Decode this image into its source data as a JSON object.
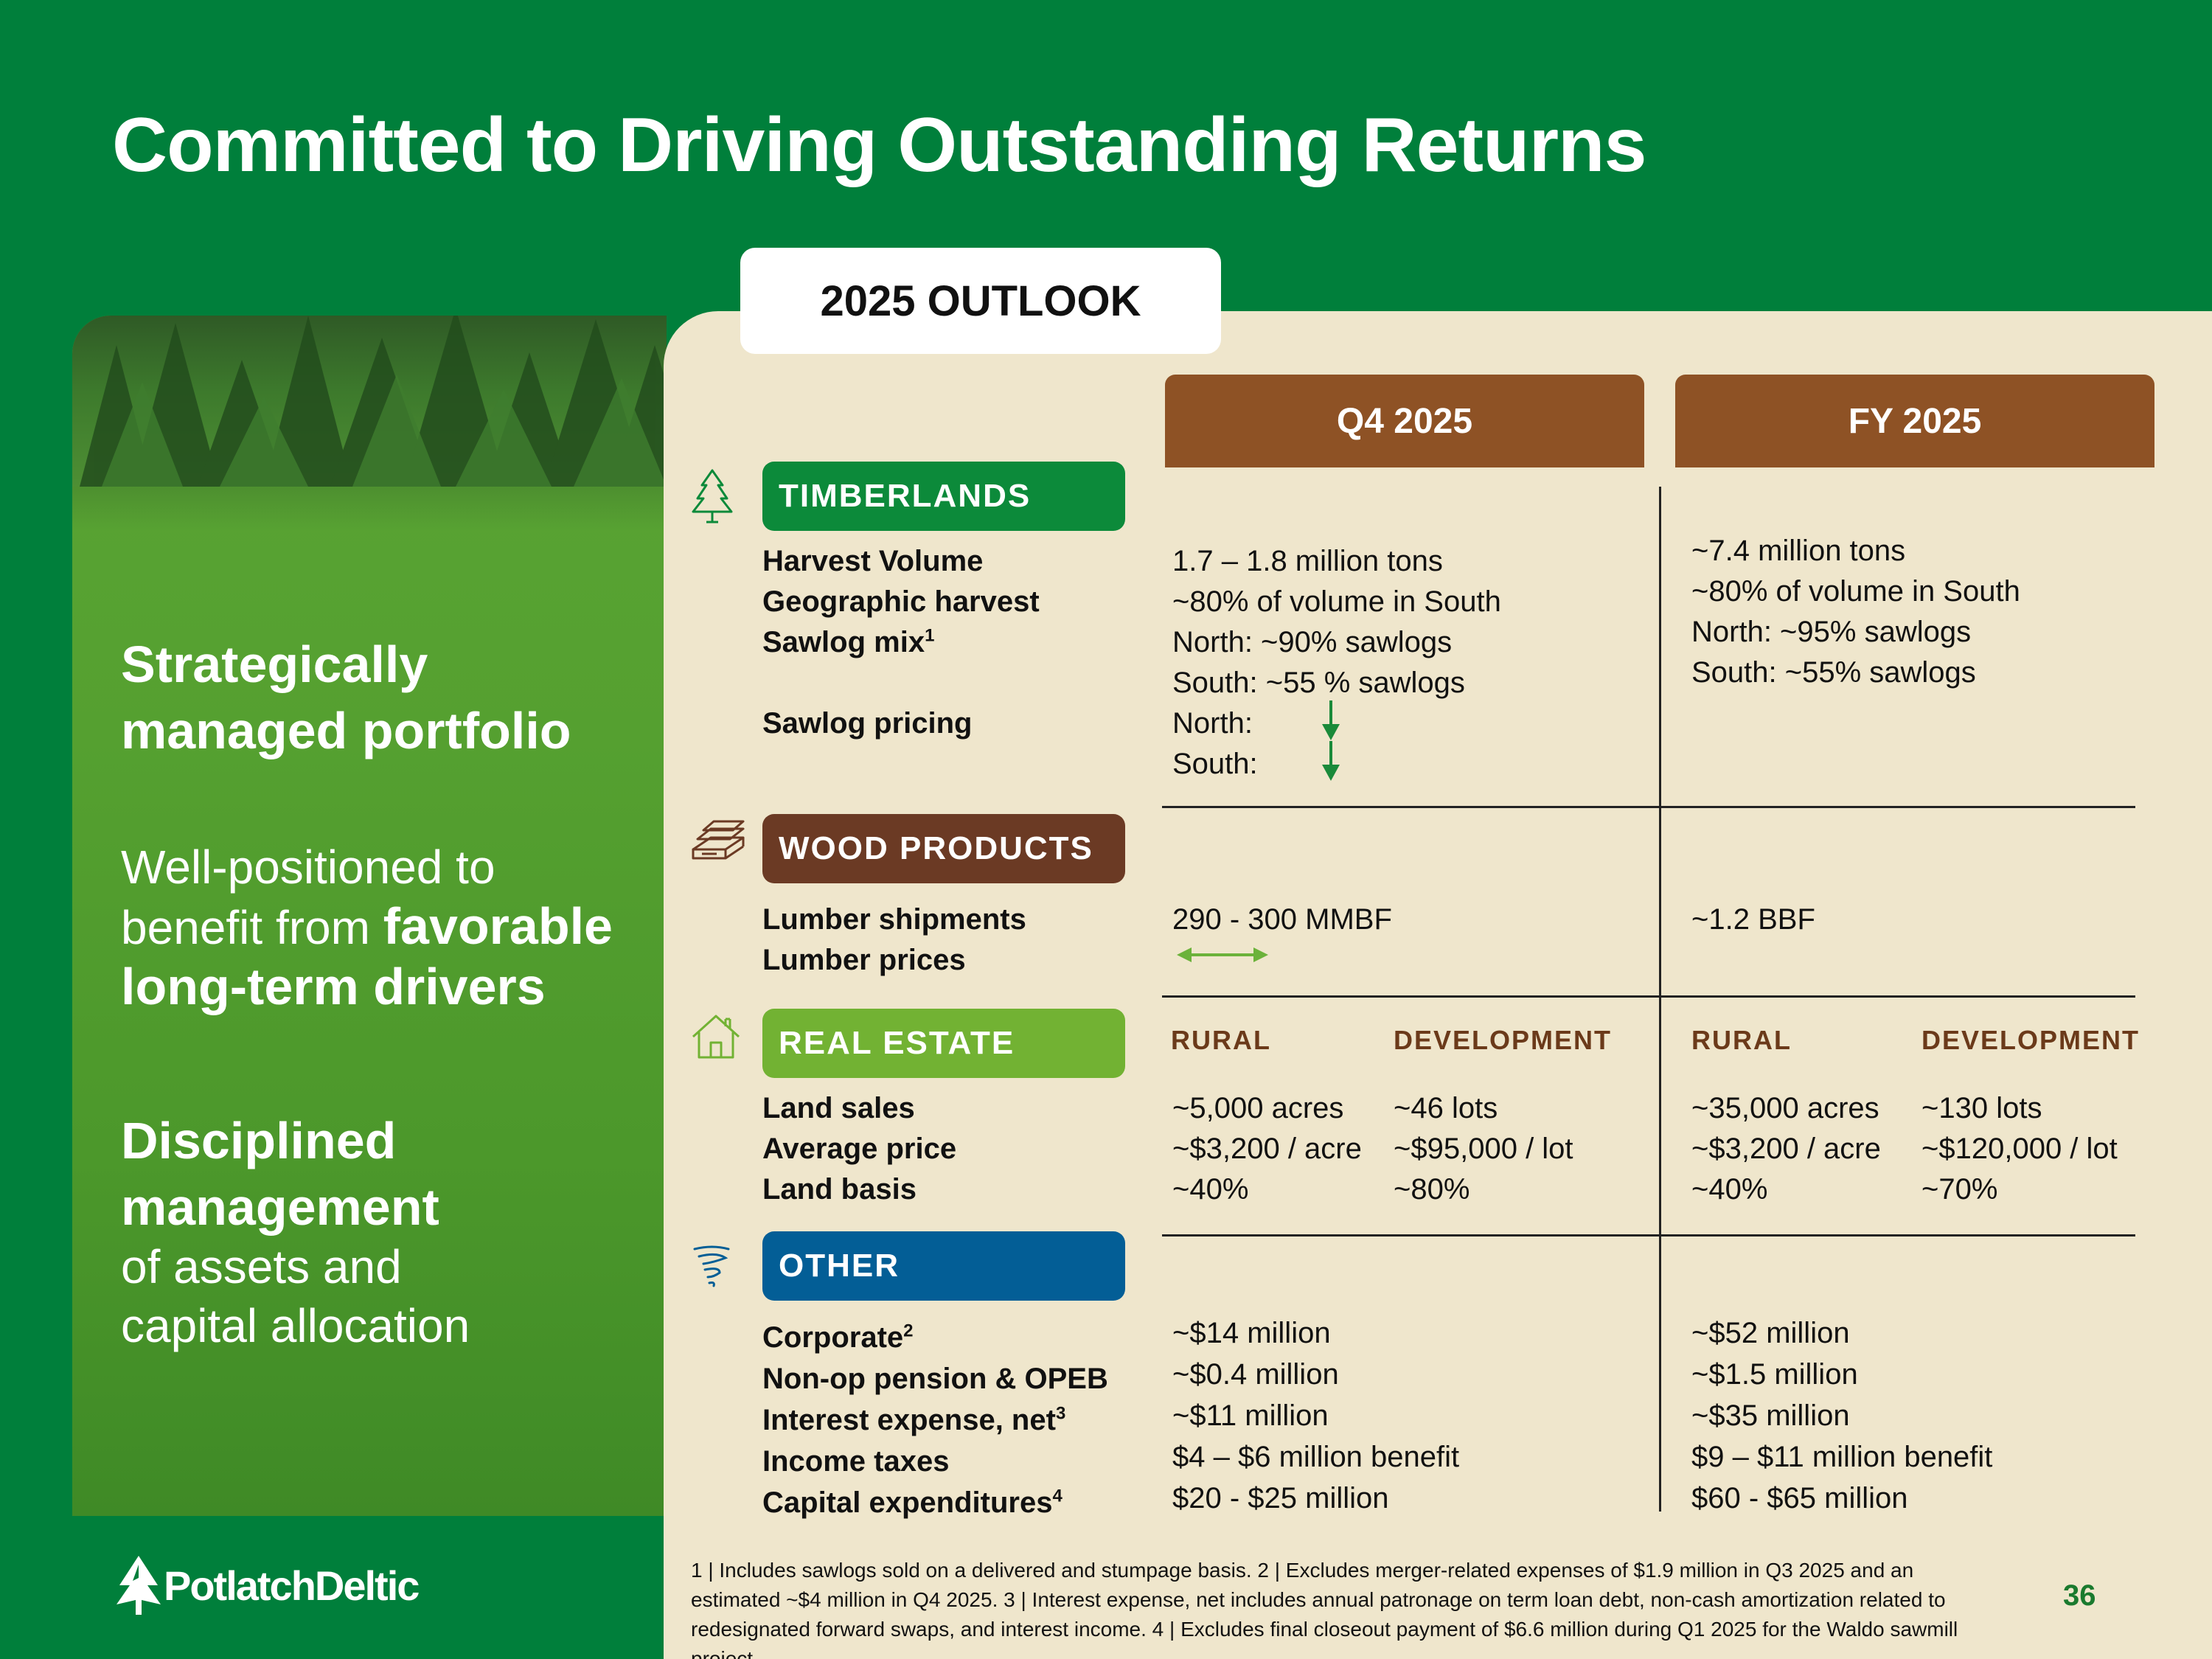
{
  "title": "Committed to Driving Outstanding Returns",
  "left_panel": {
    "heading1_line1": "Strategically",
    "heading1_line2": "managed portfolio",
    "para_line1": "Well-positioned to",
    "para_line2_regular": "benefit from ",
    "para_line2_bold": "favorable",
    "para_line3_bold": "long-term drivers",
    "heading2_line1": "Disciplined",
    "heading2_line2": "management",
    "para2_line1": "of assets and",
    "para2_line2": "capital allocation"
  },
  "logo": {
    "text": "PotlatchDeltic",
    "icon": "tree-logo-icon"
  },
  "outlook_tab": "2025 OUTLOOK",
  "columns": {
    "q4": "Q4 2025",
    "fy": "FY 2025"
  },
  "colors": {
    "background_green": "#007f3b",
    "panel_cream": "#efe6cc",
    "header_brown": "#8e5225",
    "timberlands": "#0c8a3a",
    "wood_products": "#6b3a24",
    "real_estate": "#72b233",
    "other": "#035e96",
    "arrow_green": "#1a8a3a"
  },
  "timberlands": {
    "badge": "TIMBERLANDS",
    "icon": "tree-icon",
    "labels": {
      "harvest_volume": "Harvest Volume",
      "geographic_harvest": "Geographic harvest",
      "sawlog_mix": "Sawlog mix",
      "sawlog_mix_sup": "1",
      "sawlog_pricing": "Sawlog pricing"
    },
    "q4": {
      "harvest_volume": "1.7 – 1.8 million tons",
      "geographic_harvest": "~80% of volume in South",
      "sawlog_north": "North: ~90% sawlogs",
      "sawlog_south": "South: ~55 % sawlogs",
      "pricing_north": "North:",
      "pricing_south": "South:",
      "pricing_north_trend": "down-arrow-icon",
      "pricing_south_trend": "down-arrow-icon"
    },
    "fy": {
      "harvest_volume": "~7.4 million tons",
      "geographic_harvest": "~80% of volume in South",
      "sawlog_north": "North: ~95% sawlogs",
      "sawlog_south": "South: ~55% sawlogs"
    }
  },
  "wood_products": {
    "badge": "WOOD PRODUCTS",
    "icon": "lumber-stack-icon",
    "labels": {
      "lumber_shipments": "Lumber shipments",
      "lumber_prices": "Lumber prices"
    },
    "q4": {
      "lumber_shipments": "290 - 300 MMBF",
      "lumber_prices_trend": "left-right-arrow-icon"
    },
    "fy": {
      "lumber_shipments": "~1.2 BBF"
    }
  },
  "real_estate": {
    "badge": "REAL ESTATE",
    "icon": "house-icon",
    "labels": {
      "land_sales": "Land sales",
      "average_price": "Average price",
      "land_basis": "Land basis"
    },
    "subheads": {
      "rural": "RURAL",
      "development": "DEVELOPMENT"
    },
    "q4": {
      "rural": {
        "land_sales": "~5,000 acres",
        "average_price": "~$3,200 / acre",
        "land_basis": "~40%"
      },
      "development": {
        "land_sales": "~46 lots",
        "average_price": "~$95,000 / lot",
        "land_basis": "~80%"
      }
    },
    "fy": {
      "rural": {
        "land_sales": "~35,000 acres",
        "average_price": "~$3,200 / acre",
        "land_basis": "~40%"
      },
      "development": {
        "land_sales": "~130 lots",
        "average_price": "~$120,000 / lot",
        "land_basis": "~70%"
      }
    }
  },
  "other": {
    "badge": "OTHER",
    "icon": "swirl-icon",
    "labels": {
      "corporate": "Corporate",
      "corporate_sup": "2",
      "pension": "Non-op pension & OPEB",
      "interest": "Interest expense, net",
      "interest_sup": "3",
      "income_taxes": "Income taxes",
      "capex": "Capital expenditures",
      "capex_sup": "4"
    },
    "q4": {
      "corporate": "~$14 million",
      "pension": "~$0.4 million",
      "interest": "~$11 million",
      "income_taxes": "$4 – $6 million benefit",
      "capex": "$20 - $25 million"
    },
    "fy": {
      "corporate": "~$52 million",
      "pension": "~$1.5 million",
      "interest": "~$35 million",
      "income_taxes": "$9 – $11 million benefit",
      "capex": "$60 - $65 million"
    }
  },
  "footnote": "1 | Includes sawlogs sold on a delivered and stumpage basis. 2 | Excludes merger-related expenses of $1.9 million in Q3 2025 and an estimated ~$4 million in Q4 2025. 3 | Interest expense, net includes annual patronage on term loan debt, non-cash amortization related to redesignated forward swaps, and interest income.  4 | Excludes final closeout payment of $6.6 million during Q1 2025 for the Waldo sawmill project.",
  "page_number": "36"
}
